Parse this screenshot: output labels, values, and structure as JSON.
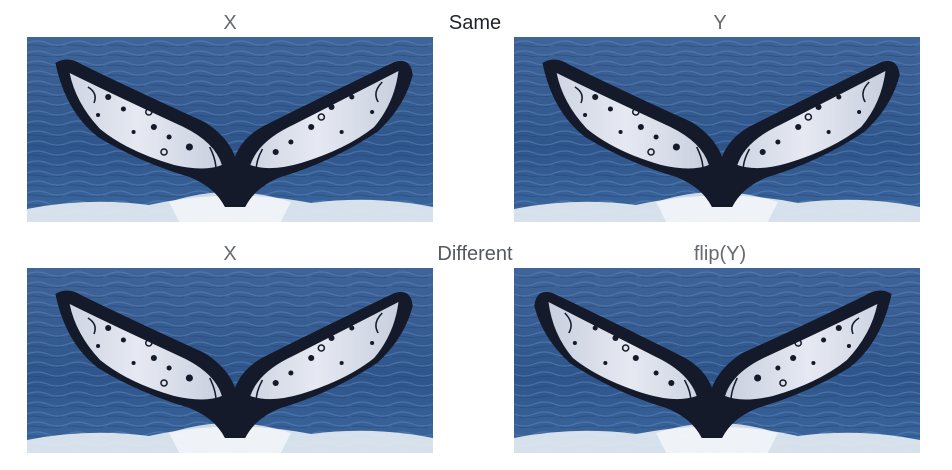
{
  "row1": {
    "left_label": "X",
    "center_label": "Same",
    "right_label": "Y",
    "left_image": "whale-fluke-photo",
    "right_image": "whale-fluke-photo"
  },
  "row2": {
    "left_label": "X",
    "center_label": "Different",
    "right_label": "flip(Y)",
    "left_image": "whale-fluke-photo",
    "right_image": "whale-fluke-photo-flipped"
  },
  "colors": {
    "sea_dark": "#2c4f82",
    "sea_light": "#5a82b8",
    "fluke_dark": "#141a2a",
    "fluke_light": "#dfe3ee",
    "foam": "#e8eef4"
  }
}
